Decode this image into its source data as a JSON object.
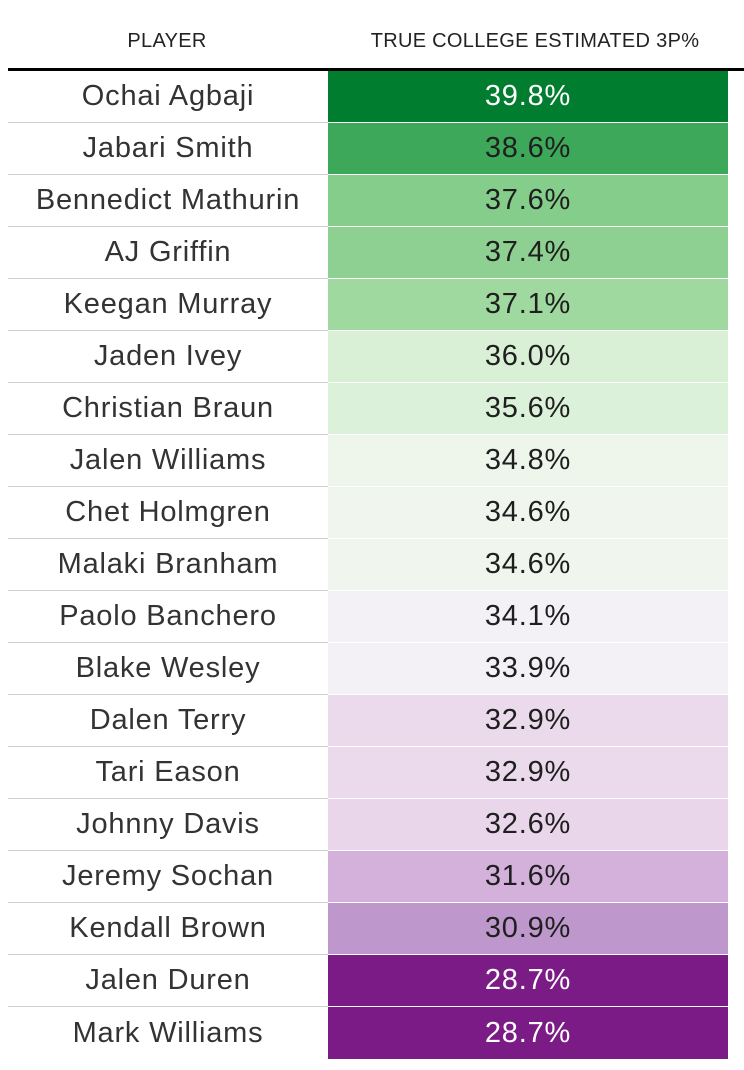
{
  "chart_data": {
    "type": "table",
    "columns": [
      "PLAYER",
      "TRUE COLLEGE ESTIMATED 3P%"
    ],
    "rows": [
      {
        "player": "Ochai Agbaji",
        "value": "39.8%",
        "bg": "#007d2e",
        "fg": "#ffffff"
      },
      {
        "player": "Jabari Smith",
        "value": "38.6%",
        "bg": "#3ea85a",
        "fg": "#1f1f1f"
      },
      {
        "player": "Bennedict Mathurin",
        "value": "37.6%",
        "bg": "#85cd8a",
        "fg": "#1f1f1f"
      },
      {
        "player": "AJ Griffin",
        "value": "37.4%",
        "bg": "#8dd091",
        "fg": "#1f1f1f"
      },
      {
        "player": "Keegan Murray",
        "value": "37.1%",
        "bg": "#a0d99f",
        "fg": "#1f1f1f"
      },
      {
        "player": "Jaden Ivey",
        "value": "36.0%",
        "bg": "#d9f0d6",
        "fg": "#1f1f1f"
      },
      {
        "player": "Christian Braun",
        "value": "35.6%",
        "bg": "#dcf1d9",
        "fg": "#1f1f1f"
      },
      {
        "player": "Jalen Williams",
        "value": "34.8%",
        "bg": "#eef6ec",
        "fg": "#1f1f1f"
      },
      {
        "player": "Chet Holmgren",
        "value": "34.6%",
        "bg": "#f0f6ee",
        "fg": "#1f1f1f"
      },
      {
        "player": "Malaki Branham",
        "value": "34.6%",
        "bg": "#f0f6ee",
        "fg": "#1f1f1f"
      },
      {
        "player": "Paolo Banchero",
        "value": "34.1%",
        "bg": "#f4f1f6",
        "fg": "#1f1f1f"
      },
      {
        "player": "Blake Wesley",
        "value": "33.9%",
        "bg": "#f4f1f6",
        "fg": "#1f1f1f"
      },
      {
        "player": "Dalen Terry",
        "value": "32.9%",
        "bg": "#ebd9ec",
        "fg": "#1f1f1f"
      },
      {
        "player": "Tari Eason",
        "value": "32.9%",
        "bg": "#ebd9ec",
        "fg": "#1f1f1f"
      },
      {
        "player": "Johnny Davis",
        "value": "32.6%",
        "bg": "#e9d6ea",
        "fg": "#1f1f1f"
      },
      {
        "player": "Jeremy Sochan",
        "value": "31.6%",
        "bg": "#d3b1da",
        "fg": "#1f1f1f"
      },
      {
        "player": "Kendall Brown",
        "value": "30.9%",
        "bg": "#be98cc",
        "fg": "#1f1f1f"
      },
      {
        "player": "Jalen Duren",
        "value": "28.7%",
        "bg": "#7b1c86",
        "fg": "#ffffff"
      },
      {
        "player": "Mark Williams",
        "value": "28.7%",
        "bg": "#7b1c86",
        "fg": "#ffffff"
      }
    ]
  }
}
